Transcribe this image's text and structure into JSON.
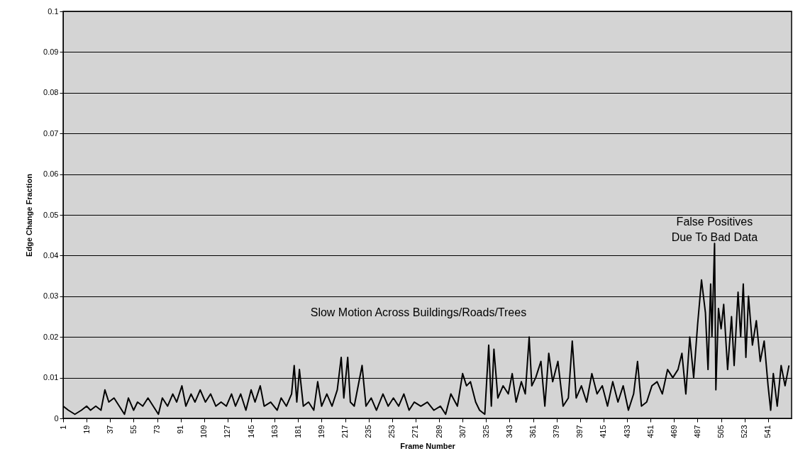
{
  "chart_data": {
    "type": "line",
    "xlabel": "Frame Number",
    "ylabel": "Edge Change Fraction",
    "annotations": [
      "Slow Motion Across Buildings/Roads/Trees",
      {
        "text": "False Positives\nDue To Bad Data",
        "x": 500,
        "y": 0.043
      }
    ],
    "x": [
      1,
      5,
      10,
      15,
      19,
      22,
      26,
      30,
      33,
      36,
      40,
      44,
      48,
      51,
      55,
      58,
      62,
      66,
      70,
      74,
      77,
      81,
      85,
      88,
      92,
      95,
      99,
      102,
      106,
      110,
      114,
      118,
      122,
      126,
      130,
      133,
      137,
      141,
      145,
      148,
      152,
      155,
      160,
      165,
      168,
      172,
      176,
      178,
      180,
      182,
      185,
      189,
      193,
      196,
      199,
      203,
      207,
      211,
      214,
      216,
      219,
      221,
      224,
      230,
      233,
      237,
      241,
      246,
      250,
      254,
      258,
      262,
      266,
      270,
      275,
      280,
      285,
      290,
      294,
      298,
      303,
      307,
      310,
      313,
      317,
      320,
      324,
      327,
      329,
      331,
      334,
      338,
      342,
      345,
      348,
      352,
      355,
      358,
      360,
      363,
      367,
      370,
      373,
      376,
      380,
      384,
      388,
      391,
      394,
      398,
      402,
      406,
      410,
      414,
      418,
      422,
      426,
      430,
      434,
      438,
      441,
      444,
      448,
      452,
      456,
      460,
      464,
      468,
      472,
      475,
      478,
      481,
      484,
      487,
      490,
      493,
      495,
      497,
      498,
      500,
      501,
      503,
      505,
      507,
      510,
      513,
      515,
      518,
      520,
      522,
      524,
      526,
      529,
      532,
      535,
      538,
      541,
      543,
      545,
      548,
      551,
      554,
      557
    ],
    "series": [
      {
        "color": "#000000",
        "values": [
          0.003,
          0.002,
          0.001,
          0.002,
          0.003,
          0.002,
          0.003,
          0.002,
          0.007,
          0.004,
          0.005,
          0.003,
          0.001,
          0.005,
          0.002,
          0.004,
          0.003,
          0.005,
          0.003,
          0.001,
          0.005,
          0.003,
          0.006,
          0.004,
          0.008,
          0.003,
          0.006,
          0.004,
          0.007,
          0.004,
          0.006,
          0.003,
          0.004,
          0.003,
          0.006,
          0.003,
          0.006,
          0.002,
          0.007,
          0.004,
          0.008,
          0.003,
          0.004,
          0.002,
          0.005,
          0.003,
          0.006,
          0.013,
          0.004,
          0.012,
          0.003,
          0.004,
          0.002,
          0.009,
          0.003,
          0.006,
          0.003,
          0.007,
          0.015,
          0.005,
          0.015,
          0.004,
          0.003,
          0.013,
          0.003,
          0.005,
          0.002,
          0.006,
          0.003,
          0.005,
          0.003,
          0.006,
          0.002,
          0.004,
          0.003,
          0.004,
          0.002,
          0.003,
          0.001,
          0.006,
          0.003,
          0.011,
          0.008,
          0.009,
          0.004,
          0.002,
          0.001,
          0.018,
          0.003,
          0.017,
          0.005,
          0.008,
          0.006,
          0.011,
          0.004,
          0.009,
          0.006,
          0.02,
          0.008,
          0.01,
          0.014,
          0.003,
          0.016,
          0.009,
          0.014,
          0.003,
          0.005,
          0.019,
          0.005,
          0.008,
          0.004,
          0.011,
          0.006,
          0.008,
          0.003,
          0.009,
          0.004,
          0.008,
          0.002,
          0.006,
          0.014,
          0.003,
          0.004,
          0.008,
          0.009,
          0.006,
          0.012,
          0.01,
          0.012,
          0.016,
          0.006,
          0.02,
          0.01,
          0.023,
          0.034,
          0.026,
          0.012,
          0.033,
          0.02,
          0.043,
          0.007,
          0.027,
          0.022,
          0.028,
          0.012,
          0.025,
          0.013,
          0.031,
          0.02,
          0.033,
          0.015,
          0.03,
          0.018,
          0.024,
          0.014,
          0.019,
          0.008,
          0.002,
          0.011,
          0.003,
          0.013,
          0.008,
          0.013
        ]
      }
    ],
    "xlim": [
      1,
      559
    ],
    "xticks": [
      1,
      19,
      37,
      55,
      73,
      91,
      109,
      127,
      145,
      163,
      181,
      199,
      217,
      235,
      253,
      271,
      289,
      307,
      325,
      343,
      361,
      379,
      397,
      415,
      433,
      451,
      469,
      487,
      505,
      523,
      541
    ],
    "ylim": [
      0,
      0.1
    ],
    "yticks": [
      0,
      0.01,
      0.02,
      0.03,
      0.04,
      0.05,
      0.06,
      0.07,
      0.08,
      0.09,
      0.1
    ],
    "grid": "y",
    "marker": "none",
    "line_style": "solid"
  }
}
